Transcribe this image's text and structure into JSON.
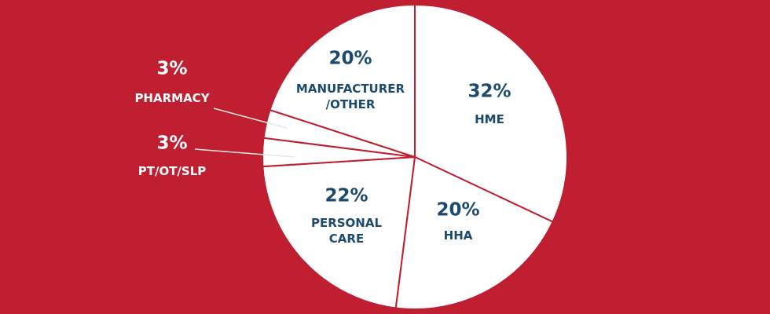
{
  "chart_data": {
    "type": "pie",
    "categories": [
      "HME",
      "HHA",
      "PERSONAL CARE",
      "PT/OT/SLP",
      "PHARMACY",
      "MANUFACTURER /OTHER"
    ],
    "values": [
      32,
      20,
      22,
      3,
      3,
      20
    ],
    "value_labels": [
      "32%",
      "20%",
      "22%",
      "3%",
      "3%",
      "20%"
    ],
    "color": "#ffffff",
    "background": "#bf1f30",
    "label_color": "#1b4a6e"
  }
}
